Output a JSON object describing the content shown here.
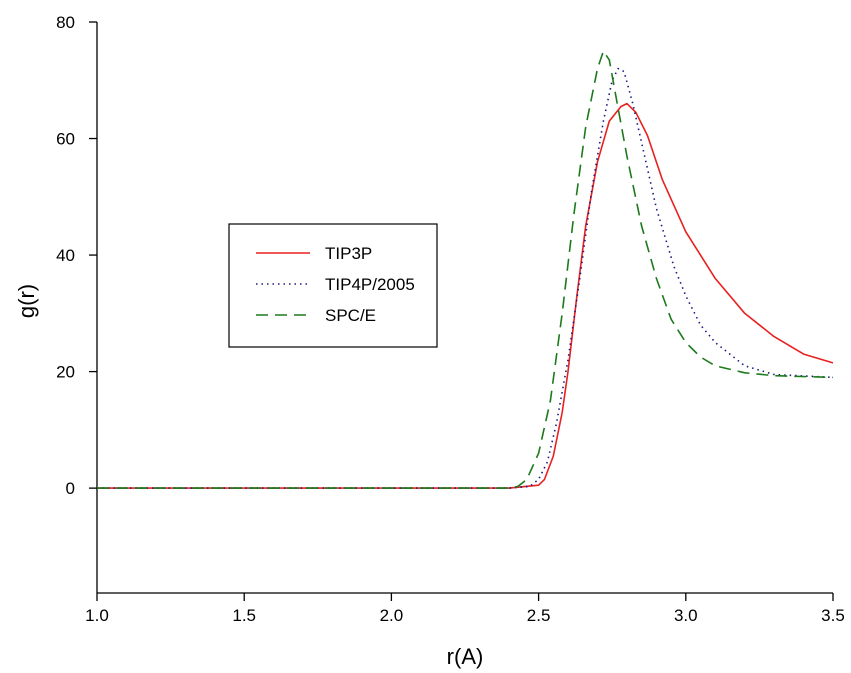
{
  "chart_data": {
    "type": "line",
    "title": "",
    "xlabel": "r(A)",
    "ylabel": "g(r)",
    "xlim": [
      1.0,
      3.5
    ],
    "ylim": [
      -18,
      80
    ],
    "xticks": [
      1.0,
      1.5,
      2.0,
      2.5,
      3.0,
      3.5
    ],
    "xtick_labels": [
      "1.0",
      "1.5",
      "2.0",
      "2.5",
      "3.0",
      "3.5"
    ],
    "yticks": [
      0,
      20,
      40,
      60,
      80
    ],
    "ytick_labels": [
      "0",
      "20",
      "40",
      "60",
      "80"
    ],
    "grid": false,
    "legend_position": "center-left",
    "series": [
      {
        "name": "TIP3P",
        "color": "#e8201f",
        "dash": "solid",
        "x": [
          1.0,
          2.4,
          2.5,
          2.52,
          2.55,
          2.58,
          2.6,
          2.63,
          2.66,
          2.7,
          2.74,
          2.78,
          2.8,
          2.83,
          2.87,
          2.92,
          3.0,
          3.1,
          3.2,
          3.3,
          3.4,
          3.5
        ],
        "y": [
          0,
          0,
          0.5,
          1.5,
          5.5,
          13,
          20,
          33,
          45,
          56,
          63,
          65.5,
          66,
          64.5,
          60.5,
          53,
          44,
          36,
          30,
          26,
          23,
          21.5
        ]
      },
      {
        "name": "TIP4P/2005",
        "color": "#1a1a80",
        "dash": "dotted",
        "x": [
          1.0,
          2.4,
          2.47,
          2.5,
          2.53,
          2.56,
          2.6,
          2.64,
          2.68,
          2.72,
          2.75,
          2.77,
          2.79,
          2.82,
          2.86,
          2.9,
          2.96,
          3.0,
          3.05,
          3.1,
          3.2,
          3.3,
          3.5
        ],
        "y": [
          0,
          0,
          0.3,
          1.5,
          4.5,
          11,
          22,
          36,
          51,
          63,
          70,
          72,
          71.5,
          66,
          57,
          48,
          38,
          33,
          28,
          25,
          21,
          19.5,
          19
        ]
      },
      {
        "name": "SPC/E",
        "color": "#1c7a1c",
        "dash": "dashed",
        "x": [
          1.0,
          2.4,
          2.43,
          2.46,
          2.5,
          2.54,
          2.58,
          2.62,
          2.66,
          2.7,
          2.72,
          2.74,
          2.76,
          2.8,
          2.85,
          2.9,
          2.95,
          3.0,
          3.05,
          3.1,
          3.2,
          3.3,
          3.5
        ],
        "y": [
          0,
          0,
          0.3,
          1.5,
          6,
          15,
          30,
          47,
          62,
          72,
          75,
          73.5,
          68,
          57,
          45,
          36,
          29,
          25,
          22.5,
          21,
          19.8,
          19.3,
          19
        ]
      }
    ]
  }
}
